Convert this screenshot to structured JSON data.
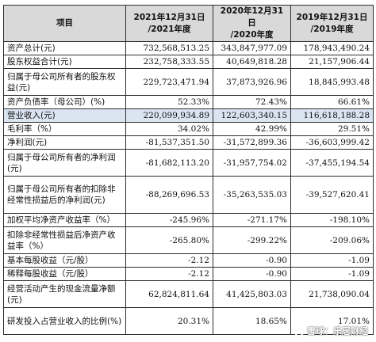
{
  "header": {
    "col0": "项目",
    "col1": "2021年12月31日\n/2021年度",
    "col2": "2020年12月31日\n/2020年度",
    "col3": "2019年12月31日\n/2019年度"
  },
  "rows": [
    {
      "label": "资产总计(元)",
      "v2021": "732,568,513.25",
      "v2020": "343,847,977.09",
      "v2019": "178,943,490.24"
    },
    {
      "label": "股东权益合计(元)",
      "v2021": "232,758,333.55",
      "v2020": "40,649,818.28",
      "v2019": "21,157,906.44"
    },
    {
      "label": "归属于母公司所有者的股东权益(元)",
      "v2021": "229,723,471.94",
      "v2020": "37,873,926.96",
      "v2019": "18,845,993.48"
    },
    {
      "label": "资产负债率（母公司）(%)",
      "v2021": "52.33%",
      "v2020": "72.43%",
      "v2019": "66.61%"
    },
    {
      "label": "营业收入(元)",
      "v2021": "220,099,934.89",
      "v2020": "122,603,340.15",
      "v2019": "116,618,188.28"
    },
    {
      "label": "毛利率（%）",
      "v2021": "34.02%",
      "v2020": "42.99%",
      "v2019": "29.51%"
    },
    {
      "label": "净利润(元)",
      "v2021": "-81,537,351.50",
      "v2020": "-31,572,899.36",
      "v2019": "-36,603,999.42"
    },
    {
      "label": "归属于母公司所有者的净利润(元)",
      "v2021": "-81,682,113.20",
      "v2020": "-31,957,754.02",
      "v2019": "-37,455,194.54"
    },
    {
      "label": "归属于母公司所有者的扣除非经常性损益后的净利润(元)",
      "v2021": "-88,269,696.53",
      "v2020": "-35,263,535.03",
      "v2019": "-39,527,620.41"
    },
    {
      "label": "加权平均净资产收益率（%）",
      "v2021": "-245.96%",
      "v2020": "-271.17%",
      "v2019": "-198.10%"
    },
    {
      "label": "扣除非经常性损益后净资产收益率（%）",
      "v2021": "-265.80%",
      "v2020": "-299.22%",
      "v2019": "-209.06%"
    },
    {
      "label": "基本每股收益（元/股）",
      "v2021": "-2.12",
      "v2020": "-0.90",
      "v2019": "-1.09"
    },
    {
      "label": "稀释每股收益（元/股）",
      "v2021": "-2.12",
      "v2020": "-0.90",
      "v2019": "-1.09"
    },
    {
      "label": "经营活动产生的现金流量净额(元)",
      "v2021": "62,824,811.64",
      "v2020": "41,425,803.03",
      "v2019": "21,738,090.04"
    },
    {
      "label": "研发投入占营业收入的比例(%)",
      "v2021": "20.31%",
      "v2020": "18.65%",
      "v2019": "17.01%"
    }
  ],
  "watermark": {
    "text": "雪球：乐居财经",
    "icon": "snowball-icon"
  },
  "colors": {
    "header_bg": "#d9d9d9",
    "highlight_bg": "#dbe5f1",
    "border": "#2d2d2d"
  }
}
